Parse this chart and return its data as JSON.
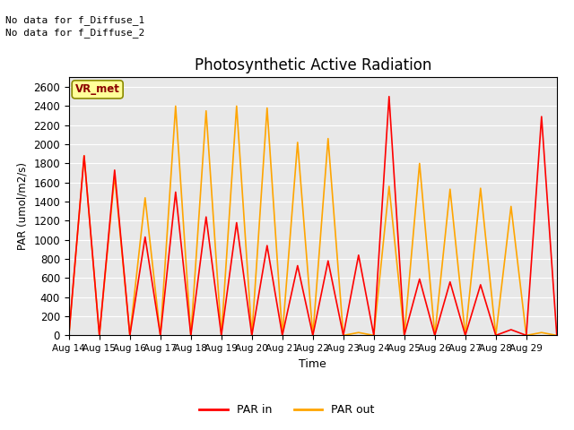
{
  "title": "Photosynthetic Active Radiation",
  "ylabel": "PAR (umol/m2/s)",
  "xlabel": "Time",
  "ylim": [
    0,
    2700
  ],
  "yticks": [
    0,
    200,
    400,
    600,
    800,
    1000,
    1200,
    1400,
    1600,
    1800,
    2000,
    2200,
    2400,
    2600
  ],
  "color_par_in": "#FF0000",
  "color_par_out": "#FFA500",
  "background_color": "#E8E8E8",
  "annotations": [
    "No data for f_Diffuse_1",
    "No data for f_Diffuse_2"
  ],
  "legend_label_in": "PAR in",
  "legend_label_out": "PAR out",
  "vr_met_label": "VR_met",
  "x_tick_labels": [
    "Aug 14",
    "Aug 15",
    "Aug 16",
    "Aug 17",
    "Aug 18",
    "Aug 19",
    "Aug 20",
    "Aug 21",
    "Aug 22",
    "Aug 23",
    "Aug 24",
    "Aug 25",
    "Aug 26",
    "Aug 27",
    "Aug 28",
    "Aug 29"
  ],
  "par_in_peaks": [
    0,
    1880,
    0,
    1730,
    0,
    1030,
    0,
    1500,
    0,
    1240,
    0,
    1180,
    0,
    940,
    0,
    730,
    0,
    780,
    0,
    840,
    0,
    2500,
    0,
    590,
    0,
    560,
    0,
    530,
    0,
    60,
    0,
    2290,
    0
  ],
  "par_out_peaks": [
    0,
    1880,
    0,
    1670,
    0,
    1440,
    0,
    2400,
    0,
    2350,
    0,
    2400,
    0,
    2380,
    0,
    2020,
    0,
    2060,
    0,
    30,
    0,
    1560,
    0,
    1800,
    0,
    1530,
    0,
    1540,
    0,
    1350,
    0,
    30,
    0
  ]
}
